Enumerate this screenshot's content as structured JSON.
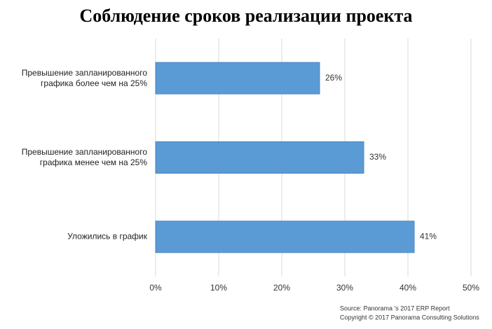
{
  "chart_data": {
    "type": "bar",
    "orientation": "horizontal",
    "title": "Соблюдение сроков реализации проекта",
    "categories": [
      "Превышение запланированного графика более чем на 25%",
      "Превышение запланированного графика менее чем на 25%",
      "Уложились в график"
    ],
    "values": [
      26,
      33,
      41
    ],
    "value_labels": [
      "26%",
      "33%",
      "41%"
    ],
    "color": "#5b9bd5",
    "xlim": [
      0,
      50
    ],
    "xticks": [
      {
        "value": 0,
        "label": "0%"
      },
      {
        "value": 10,
        "label": "10%"
      },
      {
        "value": 20,
        "label": "20%"
      },
      {
        "value": 30,
        "label": "30%"
      },
      {
        "value": 40,
        "label": "40%"
      },
      {
        "value": 50,
        "label": "50%"
      }
    ],
    "grid": true,
    "source": [
      "Source: Panorama 's 2017 ERP Report",
      "Copyright © 2017 Panorama Consulting Solutions"
    ]
  }
}
